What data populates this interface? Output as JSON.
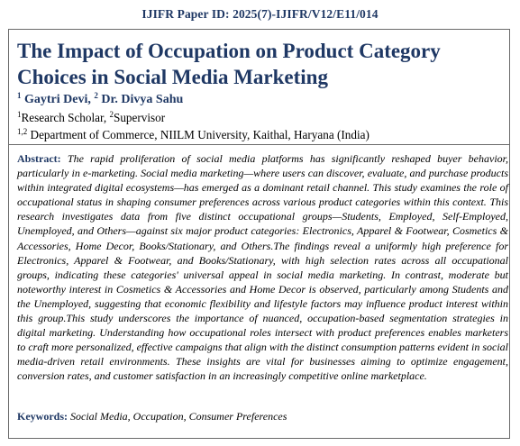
{
  "paper_id": "IJIFR Paper ID: 2025(7)-IJIFR/V12/E11/014",
  "title": "The Impact of Occupation on Product Category Choices in Social Media Marketing",
  "authors": {
    "a1_num": "1",
    "a1_name": "Gaytri Devi,",
    "a2_num": "2",
    "a2_name": "Dr. Divya Sahu"
  },
  "affiliations": {
    "line1_num1": "1",
    "line1_role1": "Research Scholar,",
    "line1_num2": "2",
    "line1_role2": "Supervisor",
    "line2_num": "1,2",
    "line2_text": "Department of Commerce, NIILM University, Kaithal, Haryana (India)"
  },
  "abstract": {
    "label": "Abstract:",
    "text": "The rapid proliferation of social media platforms has significantly reshaped buyer behavior, particularly in e-marketing. Social media marketing—where users can discover, evaluate, and purchase products within integrated digital ecosystems—has emerged as a dominant retail channel. This study examines the role of occupational status in shaping consumer preferences across various product categories within this context. This research investigates data from five distinct occupational groups—Students, Employed, Self-Employed, Unemployed, and Others—against six major product categories: Electronics, Apparel & Footwear, Cosmetics & Accessories, Home Decor, Books/Stationary, and Others.The findings reveal a uniformly high preference for Electronics, Apparel & Footwear, and Books/Stationary, with high selection rates across all occupational groups, indicating these categories' universal appeal in social media marketing. In contrast, moderate but noteworthy interest in Cosmetics & Accessories and Home Decor is observed, particularly among Students and the Unemployed, suggesting that economic flexibility and lifestyle factors may influence product interest within this group.This study underscores the importance of nuanced, occupation-based segmentation strategies in digital marketing. Understanding how occupational roles intersect with product preferences enables marketers to craft more personalized, effective campaigns that align with the distinct consumption patterns evident in social media-driven retail environments. These insights are vital for businesses aiming to optimize engagement, conversion rates, and customer satisfaction in an increasingly competitive online marketplace."
  },
  "keywords": {
    "label": "Keywords:",
    "text": "Social Media, Occupation, Consumer Preferences"
  }
}
